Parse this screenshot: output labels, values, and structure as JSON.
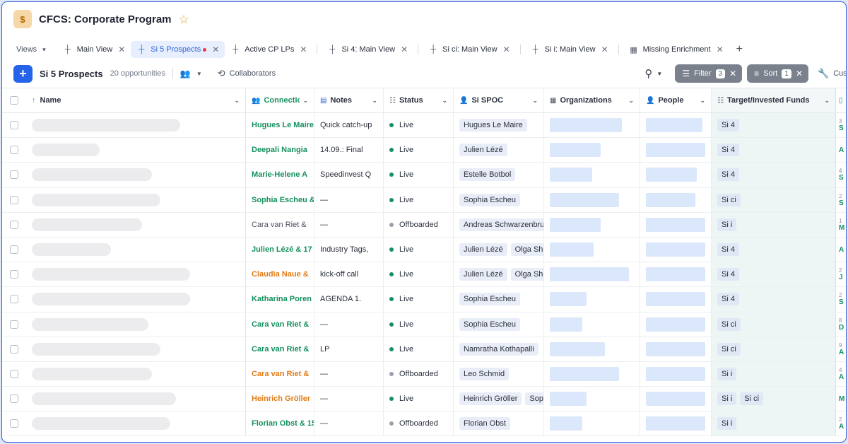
{
  "app": {
    "title": "CFCS: Corporate Program",
    "icon": "money-bag-icon",
    "favorite_icon": "star-icon"
  },
  "tabs": {
    "views_label": "Views",
    "items": [
      {
        "label": "Main View",
        "active": false,
        "unsaved": false
      },
      {
        "label": "Si 5 Prospects",
        "active": true,
        "unsaved": true
      },
      {
        "label": "Active CP LPs",
        "active": false,
        "unsaved": false
      },
      {
        "label": "Si 4: Main View",
        "active": false,
        "unsaved": false
      },
      {
        "label": "Si ci: Main View",
        "active": false,
        "unsaved": false
      },
      {
        "label": "Si i: Main View",
        "active": false,
        "unsaved": false
      },
      {
        "label": "Missing Enrichment",
        "active": false,
        "unsaved": false
      }
    ]
  },
  "toolbar": {
    "view_name": "Si 5 Prospects",
    "count_label": "20 opportunities",
    "collaborators_label": "Collaborators",
    "filter_label": "Filter",
    "filter_count": "3",
    "sort_label": "Sort",
    "sort_count": "1",
    "customize_label": "Customize"
  },
  "columns": {
    "name": "Name",
    "connections": "Connections",
    "notes": "Notes",
    "status": "Status",
    "spoc": "Si SPOC",
    "organizations": "Organizations",
    "people": "People",
    "funds": "Target/Invested Funds"
  },
  "colors": {
    "accent": "#2563eb",
    "live": "#15905e",
    "offboarded": "#9aa0ab",
    "conn_green": "#15905e",
    "conn_orange": "#e07b18"
  },
  "rows": [
    {
      "conn": "Hugues Le Maire",
      "conn_color": "green",
      "notes": "Quick catch-up",
      "status": "Live",
      "spoc": [
        "Hugues Le Maire"
      ],
      "funds": [
        "Si 4"
      ],
      "next": "S",
      "next_top": "3"
    },
    {
      "conn": "Deepali Nangia",
      "conn_color": "green",
      "notes": "14.09.: Final",
      "status": "Live",
      "spoc": [
        "Julien Lézé"
      ],
      "funds": [
        "Si 4"
      ],
      "next": "A",
      "next_top": ""
    },
    {
      "conn": "Marie-Helene A",
      "conn_color": "green",
      "notes": "Speedinvest Q",
      "status": "Live",
      "spoc": [
        "Estelle Botbol"
      ],
      "funds": [
        "Si 4"
      ],
      "next": "S",
      "next_top": "4"
    },
    {
      "conn": "Sophia Escheu &",
      "conn_color": "green",
      "notes": "—",
      "status": "Live",
      "spoc": [
        "Sophia Escheu"
      ],
      "funds": [
        "Si ci"
      ],
      "next": "S",
      "next_top": "2"
    },
    {
      "conn": "Cara van Riet &",
      "conn_color": "gray",
      "notes": "—",
      "status": "Offboarded",
      "spoc": [
        "Andreas Schwarzenbrunner"
      ],
      "funds": [
        "Si i"
      ],
      "next": "M",
      "next_top": "1"
    },
    {
      "conn": "Julien Lézé & 17",
      "conn_color": "green",
      "notes": "Industry Tags,",
      "status": "Live",
      "spoc": [
        "Julien Lézé",
        "Olga Shikhantsova"
      ],
      "funds": [
        "Si 4"
      ],
      "next": "A",
      "next_top": ""
    },
    {
      "conn": "Claudia Naue &",
      "conn_color": "orange",
      "notes": "kick-off call",
      "status": "Live",
      "spoc": [
        "Julien Lézé",
        "Olga Shikhantsova"
      ],
      "funds": [
        "Si 4"
      ],
      "next": "J",
      "next_top": "2"
    },
    {
      "conn": "Katharina Poren",
      "conn_color": "green",
      "notes": "AGENDA 1.",
      "status": "Live",
      "spoc": [
        "Sophia Escheu"
      ],
      "funds": [
        "Si 4"
      ],
      "next": "S",
      "next_top": "2"
    },
    {
      "conn": "Cara van Riet &",
      "conn_color": "green",
      "notes": "—",
      "status": "Live",
      "spoc": [
        "Sophia Escheu"
      ],
      "funds": [
        "Si ci"
      ],
      "next": "D",
      "next_top": "8"
    },
    {
      "conn": "Cara van Riet &",
      "conn_color": "green",
      "notes": "LP",
      "status": "Live",
      "spoc": [
        "Namratha Kothapalli"
      ],
      "funds": [
        "Si ci"
      ],
      "next": "A",
      "next_top": "9"
    },
    {
      "conn": "Cara van Riet &",
      "conn_color": "orange",
      "notes": "—",
      "status": "Offboarded",
      "spoc": [
        "Leo Schmid"
      ],
      "funds": [
        "Si i"
      ],
      "next": "A",
      "next_top": "4"
    },
    {
      "conn": "Heinrich Gröller",
      "conn_color": "orange",
      "notes": "—",
      "status": "Live",
      "spoc": [
        "Heinrich Gröller",
        "Sophia Escheu"
      ],
      "funds": [
        "Si i",
        "Si ci"
      ],
      "next": "M",
      "next_top": ""
    },
    {
      "conn": "Florian Obst & 15",
      "conn_color": "green",
      "notes": "—",
      "status": "Offboarded",
      "spoc": [
        "Florian Obst"
      ],
      "funds": [
        "Si i"
      ],
      "next": "A",
      "next_top": "2"
    }
  ]
}
